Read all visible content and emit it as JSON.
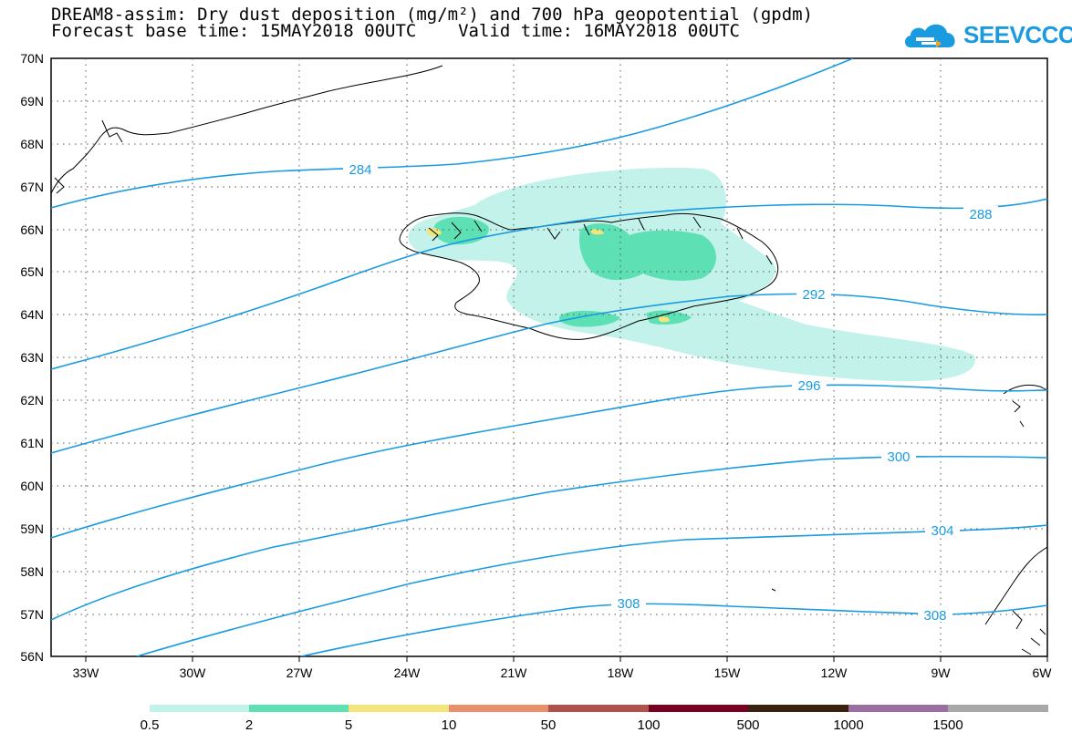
{
  "header": {
    "title_line1": "DREAM8-assim: Dry dust deposition (mg/m²) and 700 hPa geopotential (gpdm)",
    "title_line2": "Forecast base time: 15MAY2018 00UTC    Valid time: 16MAY2018 00UTC",
    "logo_text": "SEEVCCC"
  },
  "map": {
    "lat_labels": [
      "70N",
      "69N",
      "68N",
      "67N",
      "66N",
      "65N",
      "64N",
      "63N",
      "62N",
      "61N",
      "60N",
      "59N",
      "58N",
      "57N",
      "56N"
    ],
    "lon_labels": [
      "33W",
      "30W",
      "27W",
      "24W",
      "21W",
      "18W",
      "15W",
      "12W",
      "9W",
      "6W"
    ],
    "contour_labels": [
      "284",
      "288",
      "292",
      "296",
      "300",
      "304",
      "308",
      "308"
    ],
    "contour_color": "#1a9be0",
    "coast_color": "#000000"
  },
  "legend": {
    "labels": [
      "0.5",
      "2",
      "5",
      "10",
      "50",
      "100",
      "500",
      "1000",
      "1500"
    ],
    "colors": [
      "#c2f2ea",
      "#5ce0b4",
      "#f2e67a",
      "#e8906a",
      "#b0524a",
      "#7a0022",
      "#3a2210",
      "#9a6e9e",
      "#a8a8a8"
    ]
  }
}
